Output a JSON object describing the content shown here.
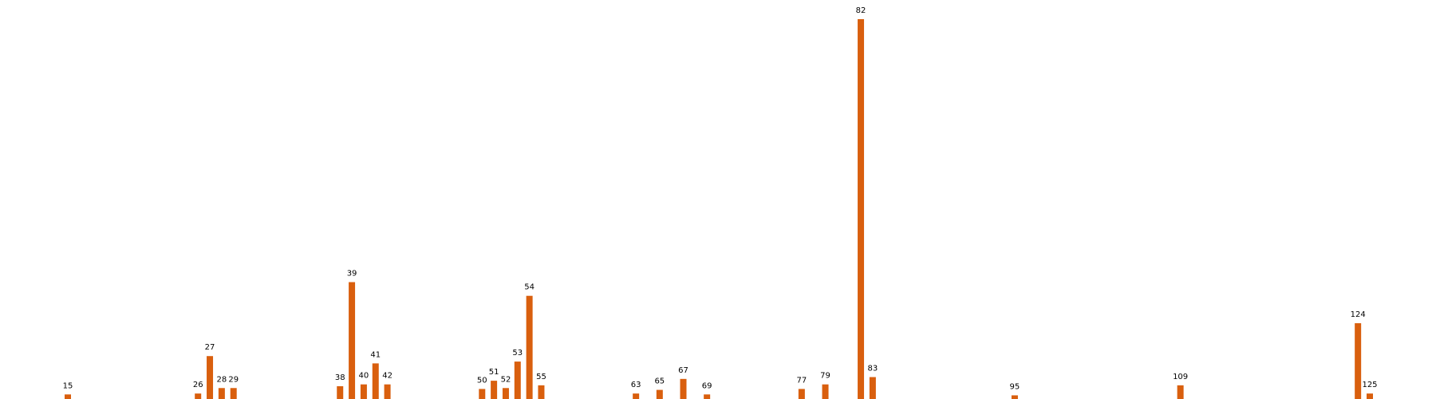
{
  "chart_data": {
    "type": "bar",
    "title": "",
    "xlabel": "",
    "ylabel": "",
    "grid": false,
    "legend": "none",
    "bar_color": "#d95f0e",
    "categories": [
      "15",
      "26",
      "27",
      "28",
      "29",
      "38",
      "39",
      "40",
      "41",
      "42",
      "50",
      "51",
      "52",
      "53",
      "54",
      "55",
      "63",
      "65",
      "67",
      "69",
      "77",
      "79",
      "82",
      "83",
      "95",
      "109",
      "124",
      "125"
    ],
    "x": [
      15,
      26,
      27,
      28,
      29,
      38,
      39,
      40,
      41,
      42,
      50,
      51,
      52,
      53,
      54,
      55,
      63,
      65,
      67,
      69,
      77,
      79,
      82,
      83,
      95,
      109,
      124,
      125
    ],
    "values": [
      5,
      6,
      47,
      12,
      12,
      14,
      128,
      16,
      39,
      16,
      11,
      20,
      12,
      41,
      113,
      15,
      6,
      10,
      22,
      5,
      11,
      16,
      416,
      24,
      4,
      15,
      83,
      6
    ],
    "xlim": [
      10,
      130
    ],
    "ylim": [
      0,
      416
    ]
  }
}
